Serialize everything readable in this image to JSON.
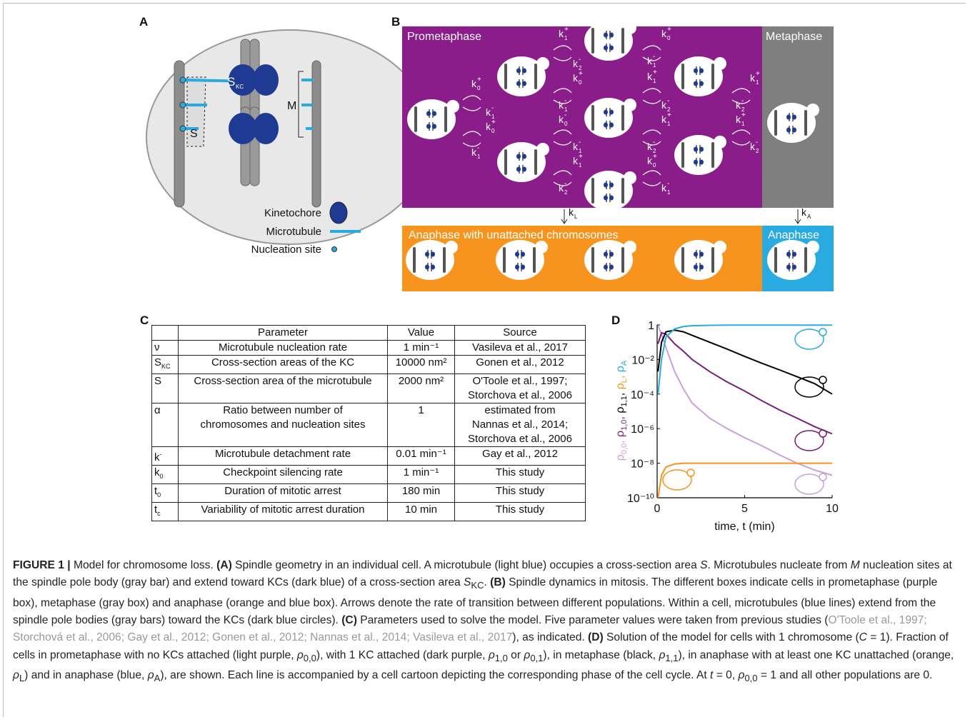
{
  "panel_labels": [
    "A",
    "B",
    "C",
    "D"
  ],
  "panel_a": {
    "skc": {
      "base": "S",
      "sub": "KC"
    },
    "m": "M",
    "s": "S",
    "legend": [
      "Kinetochore",
      "Microtubule",
      "Nucleation site"
    ]
  },
  "panel_b": {
    "prometaphase": "Prometaphase",
    "metaphase": "Metaphase",
    "anaphase_unattached": "Anaphase with unattached chromosomes",
    "anaphase": "Anaphase",
    "rates": [
      {
        "base": "k",
        "sub": "0",
        "sup": "+"
      },
      {
        "base": "k",
        "sub": "1",
        "sup": "-"
      },
      {
        "base": "k",
        "sub": "0",
        "sup": "+"
      },
      {
        "base": "k",
        "sub": "1",
        "sup": "-"
      },
      {
        "base": "k",
        "sub": "1",
        "sup": "+"
      },
      {
        "base": "k",
        "sub": "2",
        "sup": "-"
      },
      {
        "base": "k",
        "sub": "0",
        "sup": "+"
      },
      {
        "base": "k",
        "sub": "1",
        "sup": "-"
      },
      {
        "base": "k",
        "sub": "0",
        "sup": "-"
      },
      {
        "base": "k",
        "sub": "1",
        "sup": "-"
      },
      {
        "base": "k",
        "sub": "1",
        "sup": "+"
      },
      {
        "base": "k",
        "sub": "2",
        "sup": "-"
      },
      {
        "base": "k",
        "sub": "0",
        "sup": "+"
      },
      {
        "base": "k",
        "sub": "1",
        "sup": "-"
      },
      {
        "base": "k",
        "sub": "1",
        "sup": "+"
      },
      {
        "base": "k",
        "sub": "2",
        "sup": "-"
      },
      {
        "base": "k",
        "sub": "1",
        "sup": "+"
      },
      {
        "base": "k",
        "sub": "2",
        "sup": "-"
      },
      {
        "base": "k",
        "sub": "0",
        "sup": "+"
      },
      {
        "base": "k",
        "sub": "1",
        "sup": "-"
      },
      {
        "base": "k",
        "sub": "1",
        "sup": "+"
      },
      {
        "base": "k",
        "sub": "2",
        "sup": "-"
      },
      {
        "base": "k",
        "sub": "1",
        "sup": "+"
      },
      {
        "base": "k",
        "sub": "2",
        "sup": "-"
      },
      {
        "base": "k",
        "sub": "L"
      },
      {
        "base": "k",
        "sub": "A"
      }
    ]
  },
  "table": {
    "header": [
      null,
      "Parameter",
      "Value",
      "Source"
    ],
    "rows": [
      [
        "ν",
        "Microtubule nucleation rate",
        "1 min⁻¹",
        "Vasileva et al., 2017"
      ],
      [
        {
          "base": "S",
          "sub": "KC"
        },
        "Cross-section areas of the KC",
        "10000 nm²",
        "Gonen et al., 2012"
      ],
      [
        "S",
        "Cross-section area of the microtubule",
        "2000 nm²",
        [
          "O'Toole et al., 1997;",
          "Storchova et al., 2006"
        ]
      ],
      [
        "α",
        [
          "Ratio between number of",
          "chromosomes and nucleation sites"
        ],
        "1",
        [
          "estimated from",
          "Nannas et al., 2014;",
          "Storchova et al., 2006"
        ]
      ],
      [
        {
          "base": "k",
          "sup": "-"
        },
        "Microtubule detachment rate",
        "0.01 min⁻¹",
        "Gay et al., 2012"
      ],
      [
        {
          "base": "k",
          "sub": "0"
        },
        "Checkpoint silencing rate",
        "1 min⁻¹",
        "This study"
      ],
      [
        {
          "base": "t",
          "sub": "0"
        },
        "Duration of mitotic arrest",
        "180 min",
        "This study"
      ],
      [
        {
          "base": "t",
          "sub": "c"
        },
        "Variability of mitotic arrest duration",
        "10 min",
        "This study"
      ]
    ]
  },
  "chart_data": {
    "type": "line",
    "xlabel": "time, t (min)",
    "ylabel": [
      {
        "text": "ρ",
        "sub": "0,0",
        "color": "#c9a0d8"
      },
      {
        "text": "ρ",
        "sub": "1,0",
        "color": "#7a1c7a"
      },
      {
        "text": "ρ",
        "sub": "1,1",
        "color": "#000000"
      },
      {
        "text": "ρ",
        "sub": "L",
        "color": "#f7941d"
      },
      {
        "text": "ρ",
        "sub": "A",
        "color": "#29abe2"
      }
    ],
    "ylabel_separator": ", ",
    "x": [
      0.05,
      0.25,
      0.5,
      1,
      1.5,
      2,
      3,
      4,
      5,
      6,
      7,
      8,
      9,
      10
    ],
    "series": [
      {
        "color": "#c9a0d8",
        "values": [
          0.9,
          0.3,
          0.05,
          0.002,
          0.0002,
          3e-05,
          4e-06,
          1e-06,
          3e-07,
          1e-07,
          3e-08,
          1e-08,
          4e-09,
          2e-09
        ]
      },
      {
        "color": "#7a1c7a",
        "values": [
          0.08,
          0.35,
          0.3,
          0.08,
          0.03,
          0.01,
          0.002,
          0.0005,
          0.00015,
          4e-05,
          1.2e-05,
          4e-06,
          1.3e-06,
          5e-07
        ]
      },
      {
        "color": "#000000",
        "values": [
          0.002,
          0.1,
          0.4,
          0.5,
          0.4,
          0.25,
          0.1,
          0.04,
          0.015,
          0.006,
          0.0025,
          0.001,
          0.0004,
          0.0001
        ]
      },
      {
        "color": "#f7941d",
        "values": [
          1e-10,
          2e-09,
          6e-09,
          9e-09,
          1e-08,
          1e-08,
          1e-08,
          1e-08,
          1e-08,
          1e-08,
          1e-08,
          1e-08,
          1e-08,
          1e-08
        ]
      },
      {
        "color": "#29abe2",
        "values": [
          0.0001,
          0.01,
          0.2,
          0.6,
          0.8,
          0.9,
          0.95,
          0.97,
          0.98,
          0.98,
          0.98,
          0.98,
          0.98,
          0.98
        ]
      }
    ],
    "xlim": [
      0,
      10
    ],
    "xticks": [
      0,
      5,
      10
    ],
    "ylim": [
      1e-10,
      1
    ],
    "yticks": [
      {
        "value": 1e-10,
        "label": "10⁻¹⁰"
      },
      {
        "value": 1e-08,
        "label": "10⁻⁸"
      },
      {
        "value": 1e-06,
        "label": "10⁻⁶"
      },
      {
        "value": 0.0001,
        "label": "10⁻⁴"
      },
      {
        "value": 0.01,
        "label": "10⁻²"
      },
      1
    ],
    "ylog": true
  },
  "caption": [
    {
      "text": "FIGURE 1 |",
      "style": "bold"
    },
    " Model for chromosome loss. ",
    {
      "text": "(A)",
      "style": "bold"
    },
    " Spindle geometry in an individual cell. A microtubule (light blue) occupies a cross-section area ",
    {
      "text": "S",
      "style": "italic"
    },
    ". Microtubules nucleate from ",
    {
      "text": "M",
      "style": "italic"
    },
    " nucleation sites at the spindle pole body (gray bar) and extend toward KCs (dark blue) of a cross-section area ",
    {
      "text": "S",
      "style": "italic"
    },
    {
      "text": "KC",
      "style": "sub"
    },
    ". ",
    {
      "text": "(B)",
      "style": "bold"
    },
    " Spindle dynamics in mitosis. The different boxes indicate cells in prometaphase (purple box), metaphase (gray box) and anaphase (orange and blue box). Arrows denote the rate of transition between different populations. Within a cell, microtubules (blue lines) extend from the spindle pole bodies (gray bars) toward the KCs (dark blue circles). ",
    {
      "text": "(C)",
      "style": "bold"
    },
    " Parameters used to solve the model. Five parameter values were taken from previous studies (",
    {
      "text": "O'Toole et al., 1997; Storchová et al., 2006; Gay et al., 2012; Gonen et al., 2012; Nannas et al., 2014; Vasileva et al., 2017",
      "style": "cite"
    },
    "), as indicated. ",
    {
      "text": "(D)",
      "style": "bold"
    },
    " Solution of the model for cells with 1 chromosome (",
    {
      "text": "C",
      "style": "italic"
    },
    " = 1). Fraction of cells in prometaphase with no KCs attached (light purple, ",
    {
      "text": "ρ",
      "style": "italic"
    },
    {
      "text": "0,0",
      "style": "sub"
    },
    "), with 1 KC attached (dark purple, ",
    {
      "text": "ρ",
      "style": "italic"
    },
    {
      "text": "1,0",
      "style": "sub"
    },
    " or ",
    {
      "text": "ρ",
      "style": "italic"
    },
    {
      "text": "0,1",
      "style": "sub"
    },
    "), in metaphase (black, ",
    {
      "text": "ρ",
      "style": "italic"
    },
    {
      "text": "1,1",
      "style": "sub"
    },
    "), in anaphase with at least one KC unattached (orange, ",
    {
      "text": "ρ",
      "style": "italic"
    },
    {
      "text": "L",
      "style": "sub"
    },
    ") and in anaphase (blue, ",
    {
      "text": "ρ",
      "style": "italic"
    },
    {
      "text": "A",
      "style": "sub"
    },
    "), are shown. Each line is accompanied by a cell cartoon depicting the corresponding phase of the cell cycle. At ",
    {
      "text": "t",
      "style": "italic"
    },
    " = 0, ",
    {
      "text": "ρ",
      "style": "italic"
    },
    {
      "text": "0,0",
      "style": "sub"
    },
    " = 1 and all other populations are 0."
  ]
}
